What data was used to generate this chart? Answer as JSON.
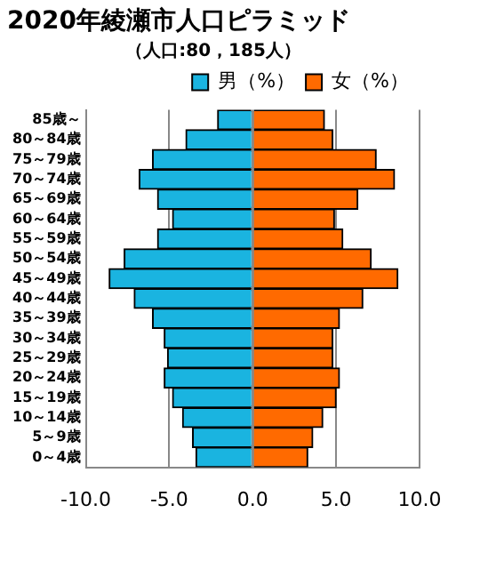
{
  "chart_data": {
    "type": "bar",
    "orientation": "horizontal",
    "stacked": true,
    "title": "2020年綾瀬市人口ピラミッド",
    "subtitle": "（人口:80，185人）",
    "categories": [
      "85歳～",
      "80～84歳",
      "75～79歳",
      "70～74歳",
      "65～69歳",
      "60～64歳",
      "55～59歳",
      "50～54歳",
      "45～49歳",
      "40～44歳",
      "35～39歳",
      "30～34歳",
      "25～29歳",
      "20～24歳",
      "15～19歳",
      "10～14歳",
      "5～9歳",
      "0～4歳"
    ],
    "series": [
      {
        "name": "男（%）",
        "color": "#1ab4e0",
        "values": [
          -2.1,
          -4.0,
          -6.0,
          -6.8,
          -5.7,
          -4.8,
          -5.7,
          -7.7,
          -8.6,
          -7.1,
          -6.0,
          -5.3,
          -5.1,
          -5.3,
          -4.8,
          -4.2,
          -3.6,
          -3.4
        ]
      },
      {
        "name": "女（%）",
        "color": "#ff6a00",
        "values": [
          4.3,
          4.8,
          7.4,
          8.5,
          6.3,
          4.9,
          5.4,
          7.1,
          8.7,
          6.6,
          5.2,
          4.8,
          4.8,
          5.2,
          5.0,
          4.2,
          3.6,
          3.3
        ]
      }
    ],
    "xlim": [
      -10,
      10
    ],
    "xticks": [
      {
        "value": -10,
        "label": "-10.0"
      },
      {
        "value": -5,
        "label": "-5.0"
      },
      {
        "value": 0,
        "label": "0.0"
      },
      {
        "value": 5,
        "label": "5.0"
      },
      {
        "value": 10,
        "label": "10.0"
      }
    ],
    "grid": "x",
    "legend": "top right"
  }
}
